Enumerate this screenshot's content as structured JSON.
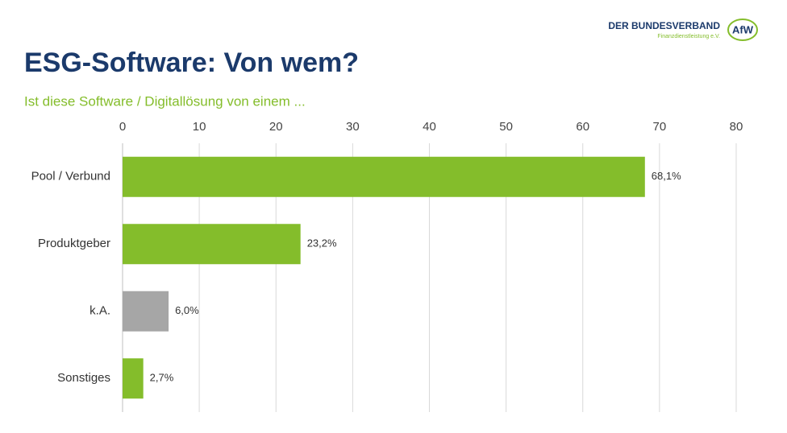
{
  "logo": {
    "text": "DER BUNDESVERBAND",
    "subtext": "Finanzdienstleistung e.V.",
    "mark": "AfW"
  },
  "chart_data": {
    "type": "barh",
    "title": "ESG-Software: Von wem?",
    "subtitle": "Ist diese Software / Digitallösung von einem ...",
    "categories": [
      "Pool / Verbund",
      "Produktgeber",
      "k.A.",
      "Sonstiges"
    ],
    "values": [
      68.1,
      23.2,
      6.0,
      2.7
    ],
    "value_labels": [
      "68,1%",
      "23,2%",
      "6,0%",
      "2,7%"
    ],
    "colors": [
      "#84bd2b",
      "#84bd2b",
      "#a6a6a6",
      "#84bd2b"
    ],
    "xlim": [
      0,
      80
    ],
    "xticks": [
      0,
      10,
      20,
      30,
      40,
      50,
      60,
      70,
      80
    ],
    "grid": true
  }
}
